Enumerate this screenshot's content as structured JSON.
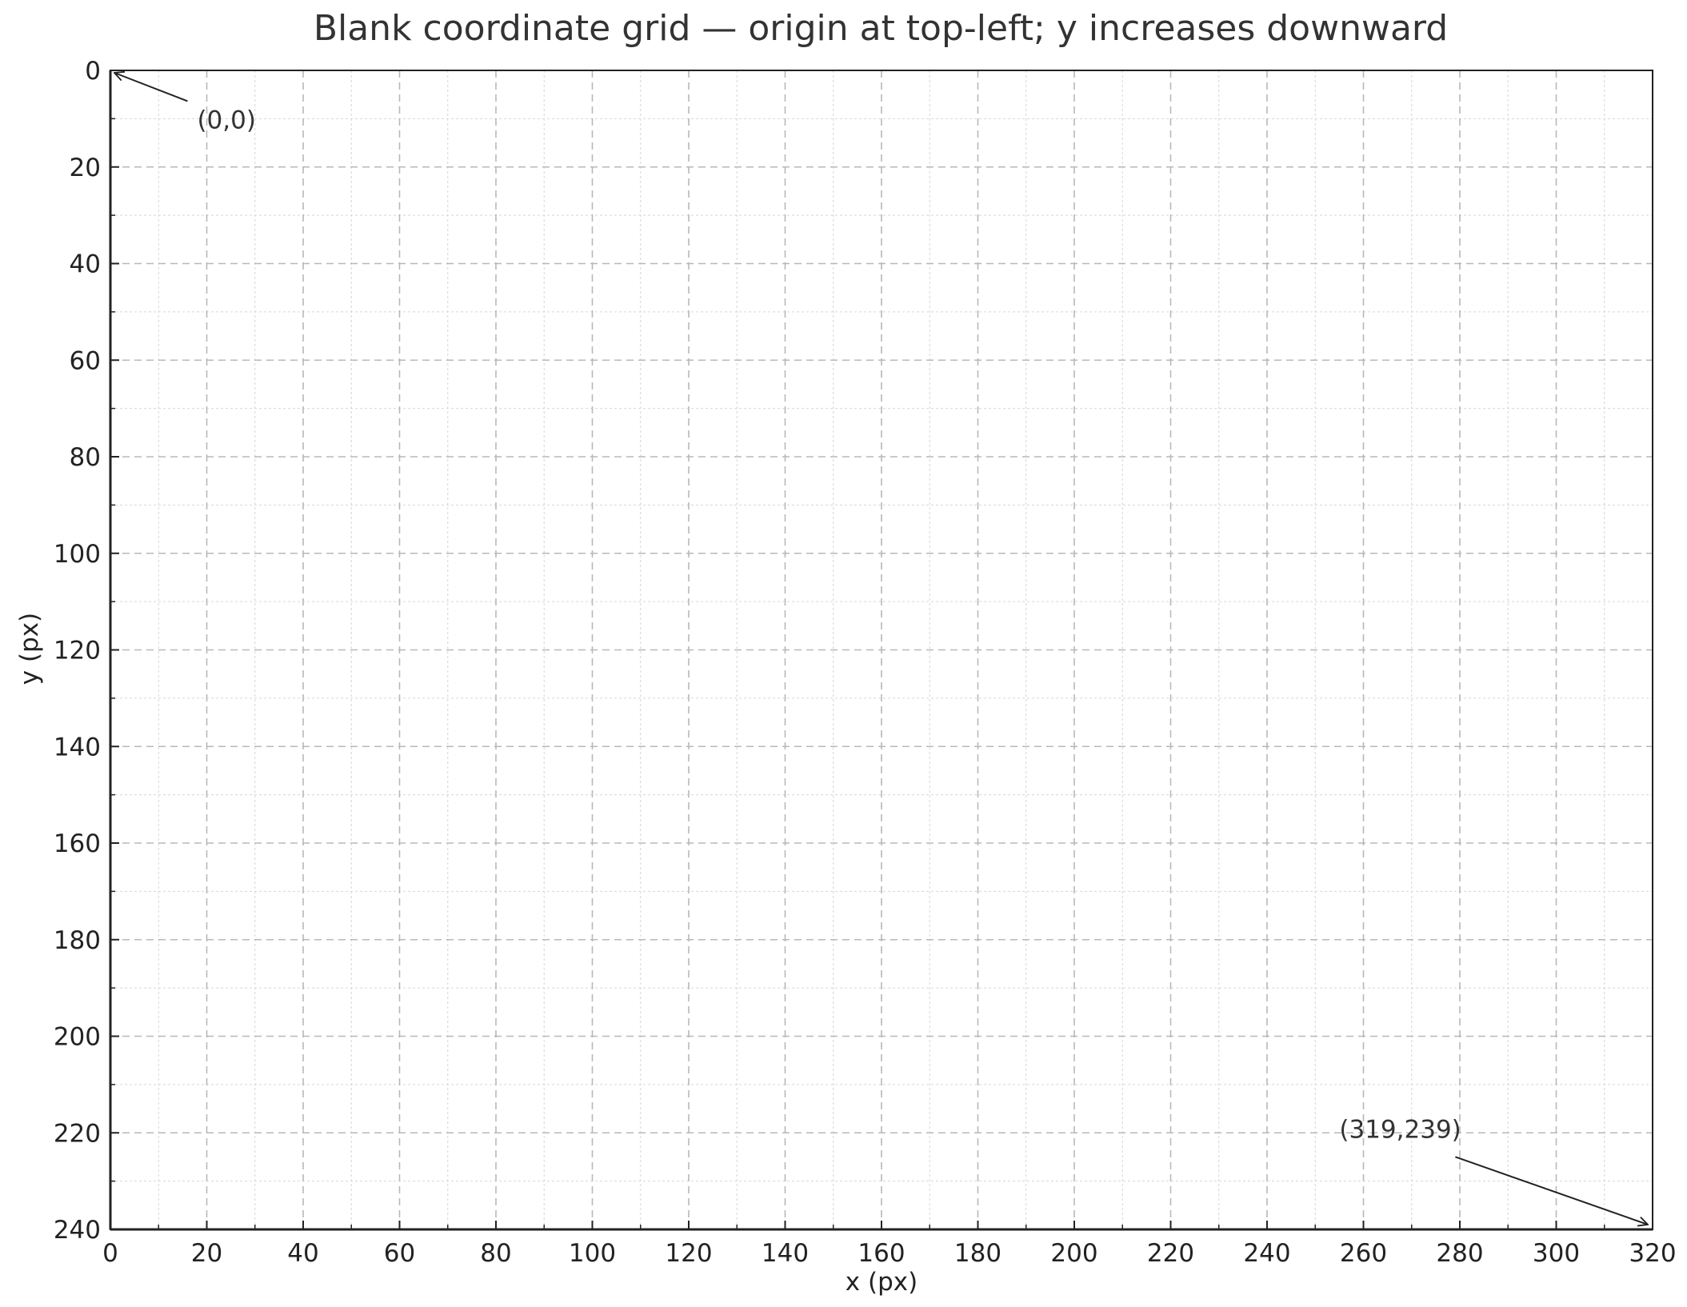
{
  "chart_data": {
    "type": "scatter",
    "title": "Blank coordinate grid — origin at top-left; y increases downward",
    "xlabel": "x (px)",
    "ylabel": "y (px)",
    "xlim": [
      0,
      320
    ],
    "ylim": [
      240,
      0
    ],
    "y_inverted": true,
    "x_ticks": [
      0,
      20,
      40,
      60,
      80,
      100,
      120,
      140,
      160,
      180,
      200,
      220,
      240,
      260,
      280,
      300,
      320
    ],
    "y_ticks": [
      0,
      20,
      40,
      60,
      80,
      100,
      120,
      140,
      160,
      180,
      200,
      220,
      240
    ],
    "x_tick_labels": [
      "0",
      "20",
      "40",
      "60",
      "80",
      "100",
      "120",
      "140",
      "160",
      "180",
      "200",
      "220",
      "240",
      "260",
      "280",
      "300",
      "320"
    ],
    "y_tick_labels": [
      "0",
      "20",
      "40",
      "60",
      "80",
      "100",
      "120",
      "140",
      "160",
      "180",
      "200",
      "220",
      "240"
    ],
    "minor_step": 10,
    "grid": true,
    "grid_major_style": "dashed",
    "grid_minor_style": "dotted",
    "series": [],
    "annotations": [
      {
        "text": "(0,0)",
        "point": [
          0,
          0
        ],
        "text_at": [
          18,
          12
        ]
      },
      {
        "text": "(319,239)",
        "point": [
          319,
          239
        ],
        "text_at": [
          255,
          221
        ]
      }
    ],
    "colors": {
      "major_grid": "#b8b8b8",
      "minor_grid": "#d6d6d6",
      "axes": "#222222",
      "text": "#333333"
    }
  }
}
